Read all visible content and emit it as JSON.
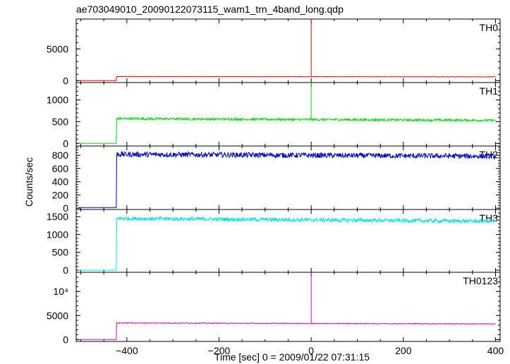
{
  "chart_data": {
    "type": "line",
    "title": "ae703049010_20090122073115_wam1_trn_4band_long.qdp",
    "xlabel": "Time [sec] 0 = 2009/01/22 07:31:15",
    "ylabel": "Counts/sec",
    "xlim": [
      -510,
      410
    ],
    "x_ticks": [
      -400,
      -200,
      0,
      200,
      400
    ],
    "x_tick_labels": [
      "−400",
      "−200",
      "0",
      "200",
      "400"
    ],
    "grid": false,
    "panels": [
      {
        "name": "TH0",
        "color": "#ff0000",
        "ylim": [
          -300,
          9700
        ],
        "y_ticks": [
          0,
          5000
        ],
        "y_tick_labels": [
          "0",
          "5000"
        ],
        "pre_level": 0,
        "onset_x": -422,
        "level_start": 650,
        "level_end": 600,
        "noise": 30,
        "spike_x": 0,
        "spike_y": 9700
      },
      {
        "name": "TH1",
        "color": "#00e000",
        "ylim": [
          -60,
          1400
        ],
        "y_ticks": [
          0,
          500,
          1000
        ],
        "y_tick_labels": [
          "0",
          "500",
          "1000"
        ],
        "pre_level": 0,
        "onset_x": -422,
        "level_start": 570,
        "level_end": 530,
        "noise": 28,
        "spike_x": 0,
        "spike_y": 1400
      },
      {
        "name": "TH2",
        "color": "#0000cc",
        "ylim": [
          -20,
          940
        ],
        "y_ticks": [
          0,
          200,
          400,
          600,
          800
        ],
        "y_tick_labels": [
          "0",
          "200",
          "400",
          "600",
          "800"
        ],
        "pre_level": 10,
        "onset_x": -422,
        "level_start": 815,
        "level_end": 785,
        "noise": 40,
        "spike_x": null,
        "spike_y": null
      },
      {
        "name": "TH3",
        "color": "#00e5e5",
        "ylim": [
          -60,
          1700
        ],
        "y_ticks": [
          0,
          500,
          1000,
          1500
        ],
        "y_tick_labels": [
          "0",
          "500",
          "1000",
          "1500"
        ],
        "pre_level": 0,
        "onset_x": -422,
        "level_start": 1450,
        "level_end": 1370,
        "noise": 55,
        "spike_x": null,
        "spike_y": null
      },
      {
        "name": "TH0123",
        "color": "#e000e0",
        "ylim": [
          -400,
          14000
        ],
        "y_ticks": [
          0,
          5000,
          10000
        ],
        "y_tick_labels": [
          "0",
          "5000",
          "10⁴"
        ],
        "pre_level": 0,
        "onset_x": -422,
        "level_start": 3450,
        "level_end": 3250,
        "noise": 70,
        "spike_x": 0,
        "spike_y": 14000
      }
    ]
  }
}
